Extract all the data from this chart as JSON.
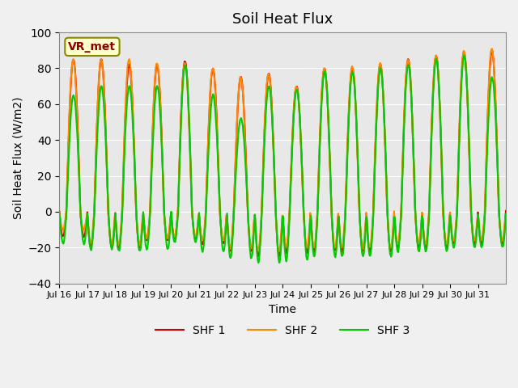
{
  "title": "Soil Heat Flux",
  "ylabel": "Soil Heat Flux (W/m2)",
  "xlabel": "Time",
  "ylim": [
    -40,
    100
  ],
  "xtick_labels": [
    "Jul 16",
    "Jul 17",
    "Jul 18",
    "Jul 19",
    "Jul 20",
    "Jul 21",
    "Jul 22",
    "Jul 23",
    "Jul 24",
    "Jul 25",
    "Jul 26",
    "Jul 27",
    "Jul 28",
    "Jul 29",
    "Jul 30",
    "Jul 31"
  ],
  "legend_labels": [
    "SHF 1",
    "SHF 2",
    "SHF 3"
  ],
  "colors": [
    "#cc0000",
    "#ff8800",
    "#00cc00"
  ],
  "annotation_text": "VR_met",
  "background_color": "#e8e8e8",
  "grid_color": "#ffffff",
  "title_fontsize": 13,
  "axis_fontsize": 10,
  "legend_fontsize": 10,
  "linewidth": 1.5,
  "n_days": 16,
  "day_peaks1": [
    85,
    85,
    82,
    82,
    84,
    80,
    75,
    77,
    70,
    80,
    80,
    82,
    85,
    87,
    89,
    90
  ],
  "day_peaks2": [
    85,
    85,
    85,
    83,
    83,
    80,
    75,
    77,
    70,
    80,
    81,
    83,
    85,
    87,
    90,
    91
  ],
  "day_peaks3": [
    65,
    70,
    70,
    70,
    82,
    65,
    52,
    70,
    68,
    78,
    78,
    80,
    82,
    85,
    87,
    75
  ],
  "day_troughs1": [
    -14,
    -20,
    -21,
    -16,
    -15,
    -18,
    -22,
    -25,
    -23,
    -22,
    -22,
    -22,
    -20,
    -20,
    -18,
    -18
  ],
  "day_troughs2": [
    -10,
    -18,
    -18,
    -15,
    -14,
    -16,
    -20,
    -22,
    -20,
    -20,
    -20,
    -20,
    -18,
    -18,
    -16,
    -16
  ],
  "day_troughs3": [
    -18,
    -21,
    -22,
    -21,
    -17,
    -22,
    -26,
    -28,
    -27,
    -25,
    -25,
    -25,
    -22,
    -22,
    -20,
    -20
  ],
  "yticks": [
    -40,
    -20,
    0,
    20,
    40,
    60,
    80,
    100
  ]
}
